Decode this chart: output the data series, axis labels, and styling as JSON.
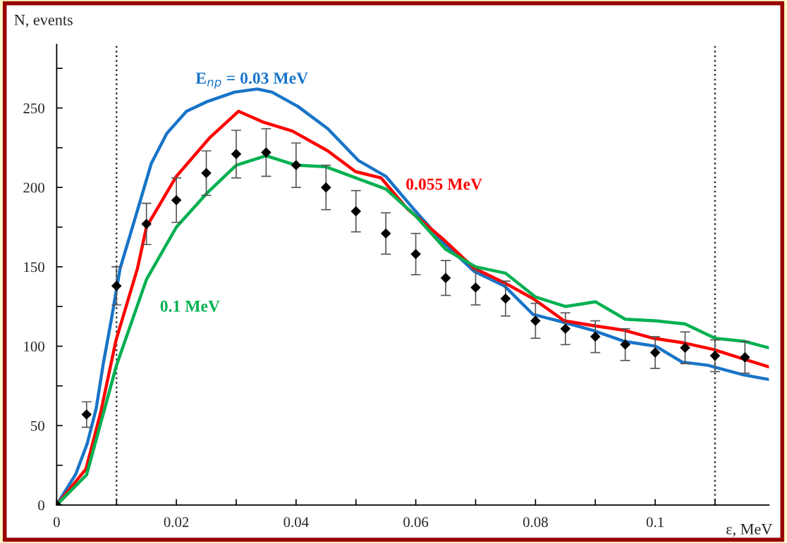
{
  "chart_data": {
    "type": "line",
    "xlabel": "ε, MeV",
    "ylabel": "N, events",
    "xlim": [
      0,
      0.119
    ],
    "ylim": [
      0,
      290
    ],
    "xticks": [
      0,
      {
        "value": 0.01,
        "label": null
      },
      0.02,
      {
        "value": 0.03,
        "label": null
      },
      0.04,
      {
        "value": 0.05,
        "label": null
      },
      0.06,
      {
        "value": 0.07,
        "label": null
      },
      0.08,
      {
        "value": 0.09,
        "label": null
      },
      0.1,
      {
        "value": 0.11,
        "label": null
      }
    ],
    "yticks": [
      0,
      {
        "value": 25,
        "label": null
      },
      50,
      {
        "value": 75,
        "label": null
      },
      100,
      {
        "value": 125,
        "label": null
      },
      150,
      {
        "value": 175,
        "label": null
      },
      200,
      {
        "value": 225,
        "label": null
      },
      250,
      {
        "value": 275,
        "label": null
      }
    ],
    "grid": false,
    "legend": false,
    "ref_lines": [
      {
        "axis": "x",
        "value": 0.01,
        "line_style": "dotted",
        "color": "#333333"
      },
      {
        "axis": "x",
        "value": 0.11,
        "line_style": "dotted",
        "color": "#333333"
      }
    ],
    "series": [
      {
        "name": "E$_{np}$ = 0.03 MeV",
        "color": "#1874c8",
        "type": "line",
        "marker": "none",
        "line_style": "solid",
        "x": [
          0,
          0.0032,
          0.0051,
          0.0066,
          0.0078,
          0.0091,
          0.0106,
          0.0133,
          0.0158,
          0.0184,
          0.0217,
          0.0251,
          0.0297,
          0.0335,
          0.036,
          0.0403,
          0.0453,
          0.0504,
          0.055,
          0.0595,
          0.0647,
          0.0698,
          0.0748,
          0.0796,
          0.0848,
          0.0896,
          0.0949,
          0.1001,
          0.1045,
          0.1088,
          0.1147,
          0.119
        ],
        "values": [
          0,
          19.5,
          38.6,
          60.7,
          89.2,
          116,
          149,
          183,
          215,
          234,
          248,
          254,
          260,
          262,
          260,
          251,
          237,
          217,
          207,
          187,
          165,
          147,
          138,
          120,
          115,
          110,
          103,
          100,
          90,
          88,
          82,
          79
        ]
      },
      {
        "name": "0.055 MeV",
        "color": "#ff0000",
        "type": "line",
        "marker": "none",
        "line_style": "solid",
        "x": [
          0,
          0.0049,
          0.0074,
          0.0099,
          0.0135,
          0.015,
          0.02,
          0.0255,
          0.0304,
          0.0346,
          0.0394,
          0.0453,
          0.0499,
          0.0542,
          0.0586,
          0.0647,
          0.0698,
          0.0748,
          0.0796,
          0.0848,
          0.0896,
          0.0949,
          0.0997,
          0.1049,
          0.1097,
          0.1147,
          0.119
        ],
        "values": [
          0,
          22.7,
          59,
          103.5,
          149,
          175,
          207,
          231,
          248,
          241,
          235.5,
          223,
          210,
          206,
          186.5,
          167,
          149,
          140,
          130,
          116,
          113,
          110,
          105,
          102,
          98,
          92,
          87
        ]
      },
      {
        "name": "0.1 MeV",
        "color": "#00b050",
        "type": "line",
        "marker": "none",
        "line_style": "solid",
        "x": [
          0,
          0.005,
          0.01,
          0.015,
          0.02,
          0.025,
          0.03,
          0.035,
          0.04,
          0.045,
          0.05,
          0.055,
          0.06,
          0.065,
          0.07,
          0.075,
          0.08,
          0.085,
          0.09,
          0.095,
          0.1,
          0.105,
          0.11,
          0.115,
          0.119
        ],
        "values": [
          0,
          19,
          88,
          142,
          175,
          196,
          214,
          220,
          214,
          213,
          206,
          199,
          182,
          161,
          150,
          146,
          131,
          125,
          128,
          117,
          116,
          114,
          105,
          103,
          99
        ]
      },
      {
        "color": "#000000",
        "type": "scatter",
        "marker": "diamond",
        "x": [
          0,
          0.005,
          0.01,
          0.015,
          0.02,
          0.025,
          0.03,
          0.035,
          0.04,
          0.045,
          0.05,
          0.055,
          0.06,
          0.065,
          0.07,
          0.075,
          0.08,
          0.085,
          0.09,
          0.095,
          0.1,
          0.105,
          0.11,
          0.115
        ],
        "values": [
          0,
          57,
          138,
          177,
          192,
          209,
          221,
          222,
          214,
          200,
          185,
          171,
          158,
          143,
          137,
          130,
          116,
          111,
          106,
          101,
          96,
          99,
          94,
          93
        ],
        "errors": [
          null,
          8,
          12,
          13,
          14,
          14,
          15,
          15,
          14,
          14,
          13,
          13,
          13,
          11,
          11,
          11,
          11,
          10,
          10,
          10,
          10,
          10,
          10,
          10
        ]
      }
    ]
  }
}
